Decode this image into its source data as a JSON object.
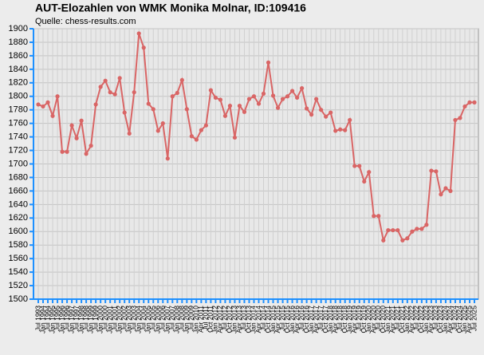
{
  "chart_data": {
    "type": "line",
    "title": "AUT-Elozahlen von WMK Monika Molnar, ID:109416",
    "subtitle": "Quelle: chess-results.com",
    "categories": [
      "Jul 1993",
      "Jan 1994",
      "Jul 1994",
      "Jan 1995",
      "Jul 1995",
      "Jan 1996",
      "Jul 1996",
      "Jan 1997",
      "Jul 1997",
      "Jan 1998",
      "Jul 1998",
      "Jan 1999",
      "Jul 1999",
      "Jan 2000",
      "Jul 2000",
      "Jan 2001",
      "Jul 2001",
      "Jan 2002",
      "Jul 2002",
      "Jan 2003",
      "Jul 2003",
      "Jan 2004",
      "Jul 2004",
      "Jan 2005",
      "Jul 2005",
      "Jan 2006",
      "Jul 2006",
      "Jan 2007",
      "Jul 2007",
      "Jan 2008",
      "Jul 2008",
      "Jan 2009",
      "Jul 2009",
      "Jan 2010",
      "Apr 2011",
      "Jul 2011",
      "Oct 2011",
      "Jan 2012",
      "Apr 2012",
      "Jul 2012",
      "Oct 2012",
      "Jan 2013",
      "Apr 2013",
      "Jul 2013",
      "Oct 2013",
      "Jan 2014",
      "Apr 2014",
      "Jul 2014",
      "Oct 2014",
      "Jan 2015",
      "Apr 2015",
      "Jul 2015",
      "Oct 2015",
      "Jan 2016",
      "Apr 2016",
      "Jul 2016",
      "Oct 2016",
      "Jan 2017",
      "Apr 2017",
      "Jul 2017",
      "Oct 2017",
      "Jan 2018",
      "Apr 2018",
      "Jul 2018",
      "Oct 2018",
      "Jan 2019",
      "Apr 2019",
      "Jul 2019",
      "Oct 2019",
      "Jan 2020",
      "Apr 2020",
      "Jul 2020",
      "Oct 2020",
      "Jan 2021",
      "Apr 2021",
      "Jul 2021",
      "Oct 2021",
      "Jan 2022",
      "Apr 2022",
      "Jul 2022",
      "Oct 2022",
      "Jan 2023",
      "Apr 2023",
      "Jul 2023",
      "Oct 2023",
      "Jan 2024",
      "Apr 2024",
      "Jul 2024",
      "Oct 2024",
      "Jan 2025",
      "Apr 2025",
      "Jul 2025"
    ],
    "series": [
      {
        "name": "Elo",
        "color": "#d96565",
        "values": [
          1788,
          1785,
          1791,
          1771,
          1800,
          1718,
          1718,
          1757,
          1738,
          1764,
          1715,
          1727,
          1788,
          1814,
          1823,
          1806,
          1803,
          1827,
          1776,
          1745,
          1806,
          1893,
          1872,
          1789,
          1781,
          1749,
          1760,
          1708,
          1800,
          1805,
          1824,
          1781,
          1741,
          1736,
          1750,
          1757,
          1809,
          1798,
          1795,
          1771,
          1786,
          1739,
          1786,
          1777,
          1796,
          1800,
          1789,
          1804,
          1850,
          1801,
          1783,
          1796,
          1800,
          1808,
          1798,
          1812,
          1782,
          1773,
          1796,
          1780,
          1770,
          1776,
          1749,
          1751,
          1750,
          1765,
          1697,
          1697,
          1674,
          1688,
          1623,
          1623,
          1587,
          1602,
          1602,
          1602,
          1587,
          1590,
          1600,
          1604,
          1604,
          1610,
          1690,
          1689,
          1655,
          1664,
          1660,
          1765,
          1768,
          1785,
          1791,
          1791
        ]
      }
    ],
    "ylim": [
      1500,
      1900
    ],
    "yticks": [
      1500,
      1520,
      1540,
      1560,
      1580,
      1600,
      1620,
      1640,
      1660,
      1680,
      1700,
      1720,
      1740,
      1760,
      1780,
      1800,
      1820,
      1840,
      1860,
      1880,
      1900
    ],
    "grid": true
  }
}
